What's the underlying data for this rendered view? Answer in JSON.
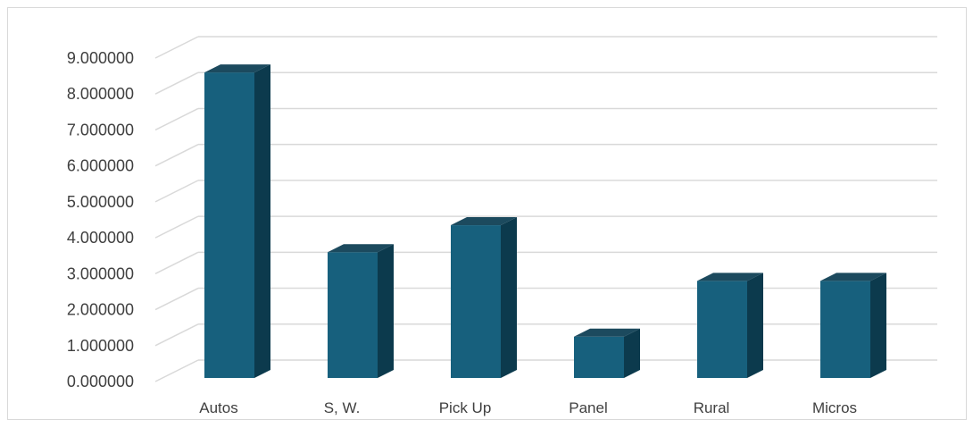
{
  "chart_data": {
    "type": "bar",
    "style": "3d-column",
    "title": "",
    "xlabel": "",
    "ylabel": "",
    "categories": [
      "Autos",
      "S, W.",
      "Pick Up",
      "Panel",
      "Rural",
      "Micros"
    ],
    "values": [
      8.5,
      3.5,
      4.25,
      1.15,
      2.7,
      2.7
    ],
    "ylim": [
      0,
      9
    ],
    "y_ticks": [
      "0.000000",
      "1.000000",
      "2.000000",
      "3.000000",
      "4.000000",
      "5.000000",
      "6.000000",
      "7.000000",
      "8.000000",
      "9.000000"
    ],
    "grid": true,
    "legend": "none",
    "colors": {
      "front": "#17607d",
      "side": "#0c3a4d",
      "top": "#1c4a5e",
      "grid": "#d9d9d9",
      "text": "#404040"
    }
  }
}
